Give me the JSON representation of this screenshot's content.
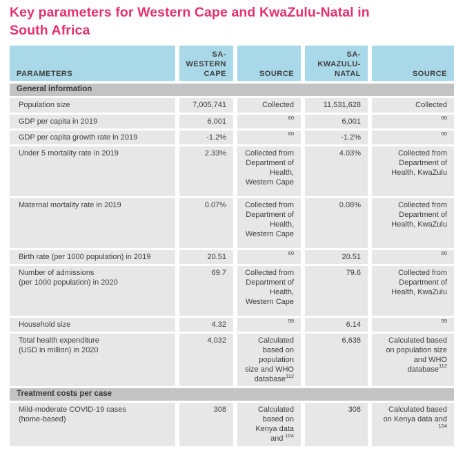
{
  "title": "Key parameters for Western Cape and KwaZulu-Natal in\nSouth Africa",
  "colors": {
    "accent": "#e7316e",
    "header-blue": "#a9d8e8",
    "section-gray": "#c4c3c3",
    "row-gray": "#e8e7e7",
    "text-dark": "#3d3d3d"
  },
  "table": {
    "headers": {
      "parameters": "PARAMETERS",
      "western_cape": "SA-\nWESTERN\nCAPE",
      "source_wc": "SOURCE",
      "kwazulu_natal": "SA-\nKWAZULU-\nNATAL",
      "source_kzn": "SOURCE"
    },
    "sections": [
      {
        "label": "General information"
      },
      {
        "label": "Treatment costs per case"
      }
    ],
    "rows": [
      {
        "parameter": "Population size",
        "wc_value": "7,005,741",
        "wc_src": "Collected",
        "wc_sup": "",
        "kzn_value": "11,531,628",
        "kzn_src": "Collected",
        "kzn_sup": ""
      },
      {
        "parameter": "GDP per capita in 2019",
        "wc_value": "6,001",
        "wc_src": "",
        "wc_sup": "60",
        "kzn_value": "6,001",
        "kzn_src": "",
        "kzn_sup": "60"
      },
      {
        "parameter": "GDP per capita growth rate in 2019",
        "wc_value": "-1.2%",
        "wc_src": "",
        "wc_sup": "60",
        "kzn_value": "-1.2%",
        "kzn_src": "",
        "kzn_sup": "60"
      },
      {
        "parameter": "Under 5 mortality rate in 2019",
        "wc_value": "2.33%",
        "wc_src": "Collected from Department of Health, Western Cape",
        "wc_sup": "",
        "kzn_value": "4.03%",
        "kzn_src": "Collected from Department of Health, KwaZulu",
        "kzn_sup": ""
      },
      {
        "parameter": "Maternal mortality rate in 2019",
        "wc_value": "0.07%",
        "wc_src": "Collected from Department of Health, Western Cape",
        "wc_sup": "",
        "kzn_value": "0.08%",
        "kzn_src": "Collected from Department of Health, KwaZulu",
        "kzn_sup": ""
      },
      {
        "parameter": "Birth rate (per 1000 population) in 2019",
        "wc_value": "20.51",
        "wc_src": "",
        "wc_sup": "60",
        "kzn_value": "20.51",
        "kzn_src": "",
        "kzn_sup": "60"
      },
      {
        "parameter": "Number of admissions\n(per 1000 population) in 2020",
        "wc_value": "69.7",
        "wc_src": "Collected from Department of Health, Western Cape",
        "wc_sup": "",
        "kzn_value": "79.6",
        "kzn_src": "Collected from Department of Health, KwaZulu",
        "kzn_sup": ""
      },
      {
        "parameter": "Household size",
        "wc_value": "4.32",
        "wc_src": "",
        "wc_sup": "99",
        "kzn_value": "6.14",
        "kzn_src": "",
        "kzn_sup": "99"
      },
      {
        "parameter": "Total health expenditure\n(USD in million) in 2020",
        "wc_value": "4,032",
        "wc_src": "Calculated based on population size and WHO database",
        "wc_sup": "112",
        "kzn_value": "6,638",
        "kzn_src": "Calculated based on population size and WHO database",
        "kzn_sup": "112"
      },
      {
        "parameter": "Mild-moderate COVID-19 cases\n(home-based)",
        "wc_value": "308",
        "wc_src": "Calculated based on Kenya data and ",
        "wc_sup": "104",
        "kzn_value": "308",
        "kzn_src": "Calculated based on Kenya data and ",
        "kzn_sup": "104"
      }
    ]
  }
}
